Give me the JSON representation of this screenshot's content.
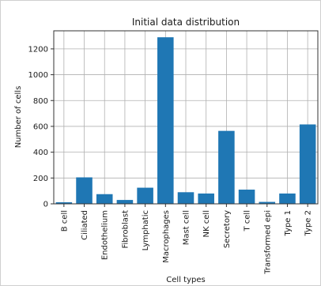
{
  "chart_data": {
    "type": "bar",
    "title": "Initial data distribution",
    "xlabel": "Cell types",
    "ylabel": "Number of cells",
    "categories": [
      "B cell",
      "Ciliated",
      "Endothelium",
      "Fibroblast",
      "Lymphatic",
      "Macrophages",
      "Mast cell",
      "NK cell",
      "Secretory",
      "T cell",
      "Transformed epi",
      "Type 1",
      "Type 2"
    ],
    "values": [
      12,
      205,
      75,
      30,
      125,
      1290,
      90,
      80,
      565,
      110,
      15,
      80,
      615
    ],
    "ylim": [
      0,
      1340
    ],
    "yticks": [
      0,
      200,
      400,
      600,
      800,
      1000,
      1200
    ],
    "grid": true,
    "bar_color": "#1f77b4"
  }
}
